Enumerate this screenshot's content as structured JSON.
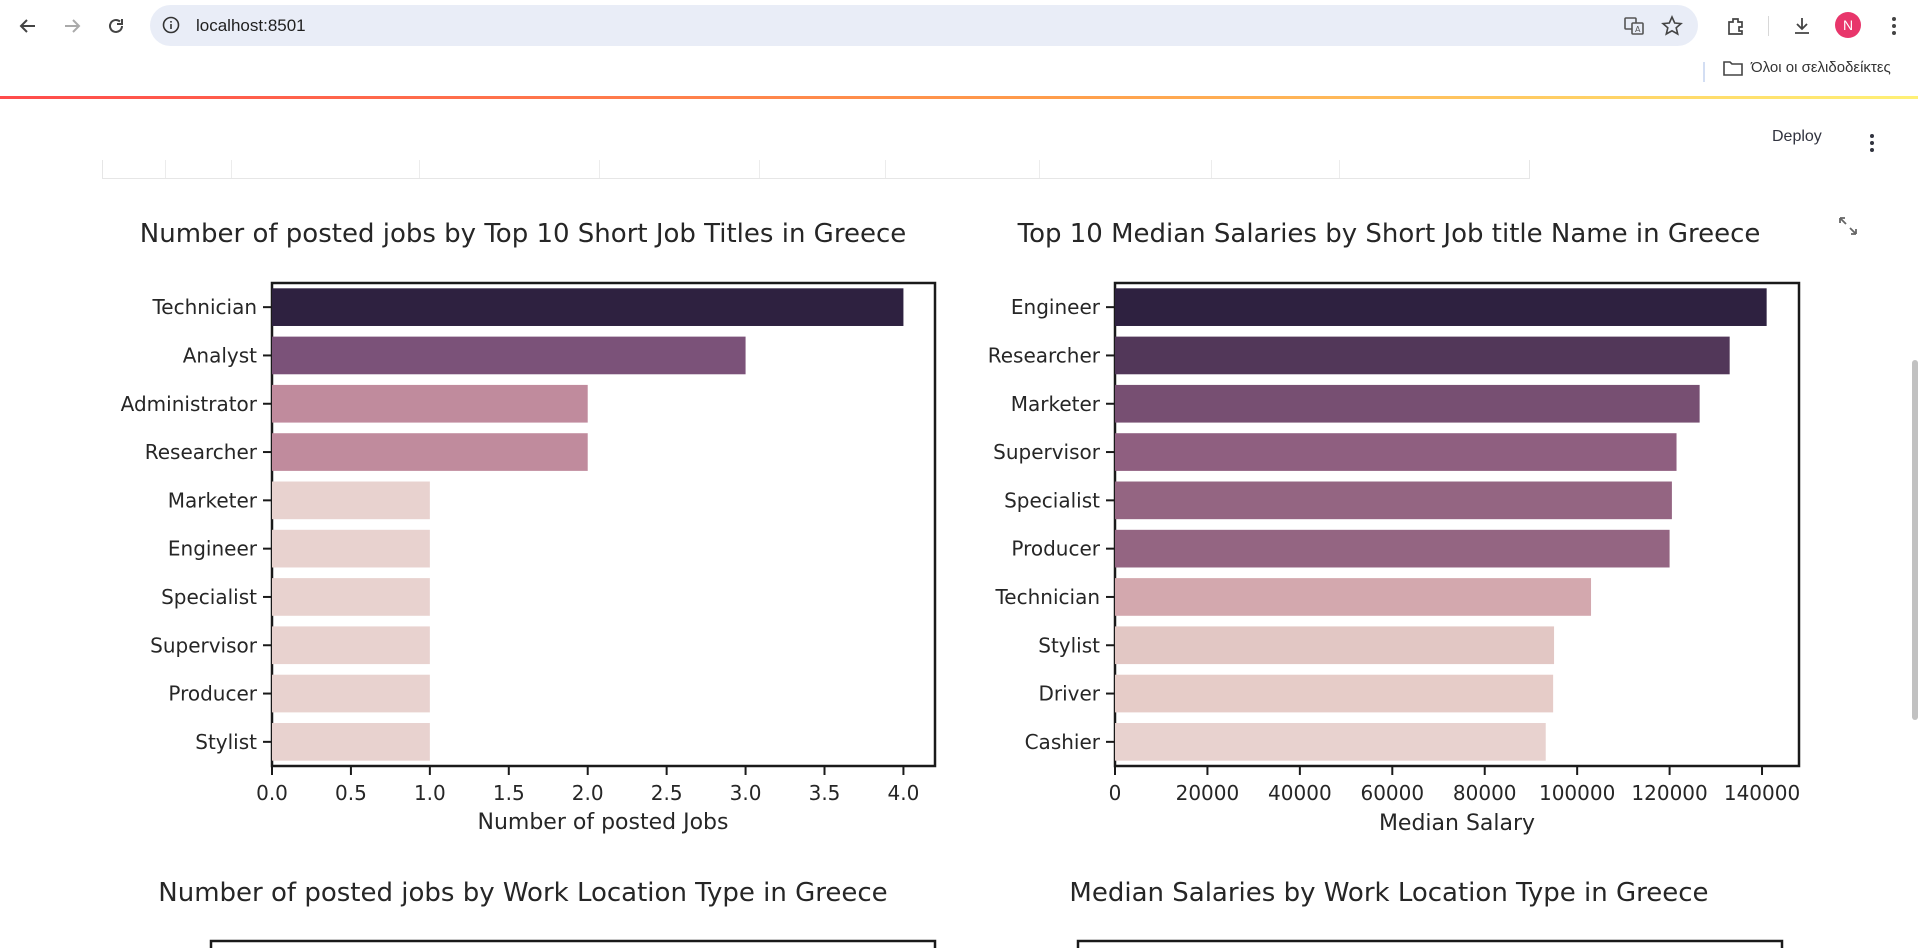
{
  "browser": {
    "url": "localhost:8501",
    "avatar_letter": "N",
    "bookmarks_folder": "Όλοι οι σελιδοδείκτες"
  },
  "app": {
    "deploy_label": "Deploy"
  },
  "sections": {
    "bottom_left_title": "Number of posted jobs by Work Location Type in Greece",
    "bottom_right_title": "Median Salaries by Work Location Type in Greece"
  },
  "chart_data": [
    {
      "type": "bar",
      "orientation": "horizontal",
      "title": "Number of posted jobs by Top 10 Short Job Titles in Greece",
      "xlabel": "Number of posted Jobs",
      "ylabel": "",
      "categories": [
        "Technician",
        "Analyst",
        "Administrator",
        "Researcher",
        "Marketer",
        "Engineer",
        "Specialist",
        "Supervisor",
        "Producer",
        "Stylist"
      ],
      "values": [
        4,
        3,
        2,
        2,
        1,
        1,
        1,
        1,
        1,
        1
      ],
      "colors": [
        "#2e2140",
        "#7b5279",
        "#c08b9d",
        "#c08b9d",
        "#e8d2cf",
        "#e8d2cf",
        "#e8d2cf",
        "#e8d2cf",
        "#e8d2cf",
        "#e8d2cf"
      ],
      "xlim": [
        0,
        4.2
      ],
      "xticks": [
        "0.0",
        "0.5",
        "1.0",
        "1.5",
        "2.0",
        "2.5",
        "3.0",
        "3.5",
        "4.0"
      ]
    },
    {
      "type": "bar",
      "orientation": "horizontal",
      "title": "Top 10 Median Salaries by Short Job title Name in Greece",
      "xlabel": "Median Salary",
      "ylabel": "",
      "categories": [
        "Engineer",
        "Researcher",
        "Marketer",
        "Supervisor",
        "Specialist",
        "Producer",
        "Technician",
        "Stylist",
        "Driver",
        "Cashier"
      ],
      "values": [
        141000,
        133000,
        126500,
        121500,
        120500,
        120000,
        103000,
        95000,
        94800,
        93200
      ],
      "colors": [
        "#2e2140",
        "#523759",
        "#774f72",
        "#8f5f80",
        "#946582",
        "#946582",
        "#d3a8ae",
        "#e2c7c4",
        "#e6ccc8",
        "#e8d2cf"
      ],
      "xlim": [
        0,
        148000
      ],
      "xticks": [
        "0",
        "20000",
        "40000",
        "60000",
        "80000",
        "100000",
        "120000",
        "140000"
      ]
    }
  ]
}
